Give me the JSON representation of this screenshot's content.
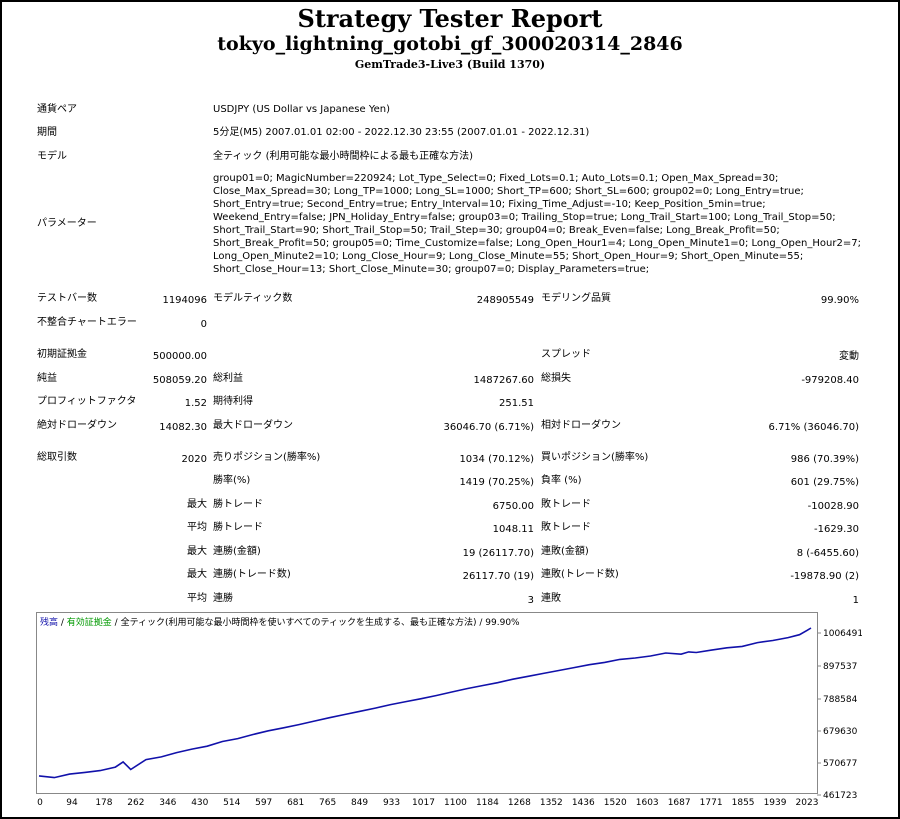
{
  "report": {
    "title": "Strategy Tester Report",
    "subtitle": "tokyo_lightning_gotobi_gf_300020314_2846",
    "server": "GemTrade3-Live3 (Build 1370)"
  },
  "info": {
    "symbol_label": "通貨ペア",
    "symbol_value": "USDJPY (US Dollar vs Japanese Yen)",
    "period_label": "期間",
    "period_value": "5分足(M5) 2007.01.01 02:00 - 2022.12.30 23:55 (2007.01.01 - 2022.12.31)",
    "model_label": "モデル",
    "model_value": "全ティック (利用可能な最小時間枠による最も正確な方法)",
    "params_label": "パラメーター",
    "params_value": "group01=0; MagicNumber=220924; Lot_Type_Select=0; Fixed_Lots=0.1; Auto_Lots=0.1; Open_Max_Spread=30; Close_Max_Spread=30; Long_TP=1000; Long_SL=1000; Short_TP=600; Short_SL=600; group02=0; Long_Entry=true; Short_Entry=true; Second_Entry=true; Entry_Interval=10; Fixing_Time_Adjust=-10; Keep_Position_5min=true; Weekend_Entry=false; JPN_Holiday_Entry=false; group03=0; Trailing_Stop=true; Long_Trail_Start=100; Long_Trail_Stop=50; Short_Trail_Start=90; Short_Trail_Stop=50; Trail_Step=30; group04=0; Break_Even=false; Long_Break_Profit=50; Short_Break_Profit=50; group05=0; Time_Customize=false; Long_Open_Hour1=4; Long_Open_Minute1=0; Long_Open_Hour2=7; Long_Open_Minute2=10; Long_Close_Hour=9; Long_Close_Minute=55; Short_Open_Hour=9; Short_Open_Minute=55; Short_Close_Hour=13; Short_Close_Minute=30; group07=0; Display_Parameters=true;"
  },
  "stats": {
    "bars_label": "テストバー数",
    "bars_value": "1194096",
    "ticks_label": "モデルティック数",
    "ticks_value": "248905549",
    "quality_label": "モデリング品質",
    "quality_value": "99.90%",
    "mismatch_label": "不整合チャートエラー",
    "mismatch_value": "0",
    "deposit_label": "初期証拠金",
    "deposit_value": "500000.00",
    "spread_label": "スプレッド",
    "spread_value": "変動",
    "net_label": "純益",
    "net_value": "508059.20",
    "gross_profit_label": "総利益",
    "gross_profit_value": "1487267.60",
    "gross_loss_label": "総損失",
    "gross_loss_value": "-979208.40",
    "pf_label": "プロフィットファクタ",
    "pf_value": "1.52",
    "expected_label": "期待利得",
    "expected_value": "251.51",
    "abs_dd_label": "絶対ドローダウン",
    "abs_dd_value": "14082.30",
    "max_dd_label": "最大ドローダウン",
    "max_dd_value": "36046.70 (6.71%)",
    "rel_dd_label": "相対ドローダウン",
    "rel_dd_value": "6.71% (36046.70)",
    "trades_label": "総取引数",
    "trades_value": "2020",
    "short_label": "売りポジション(勝率%)",
    "short_value": "1034 (70.12%)",
    "long_label": "買いポジション(勝率%)",
    "long_value": "986 (70.39%)",
    "win_pct_label": "勝率(%)",
    "win_pct_value": "1419 (70.25%)",
    "loss_pct_label": "負率 (%)",
    "loss_pct_value": "601 (29.75%)",
    "max_label": "最大",
    "avg_label": "平均",
    "largest_win_label": "勝トレード",
    "largest_win_value": "6750.00",
    "largest_loss_label": "敗トレード",
    "largest_loss_value": "-10028.90",
    "avg_win_label": "勝トレード",
    "avg_win_value": "1048.11",
    "avg_loss_label": "敗トレード",
    "avg_loss_value": "-1629.30",
    "max_cons_win_label": "連勝(金額)",
    "max_cons_win_value": "19 (26117.70)",
    "max_cons_loss_label": "連敗(金額)",
    "max_cons_loss_value": "8 (-6455.60)",
    "max_cons_profit_label": "連勝(トレード数)",
    "max_cons_profit_value": "26117.70 (19)",
    "max_cons_lossamt_label": "連敗(トレード数)",
    "max_cons_lossamt_value": "-19878.90 (2)",
    "avg_cons_win_label": "連勝",
    "avg_cons_win_value": "3",
    "avg_cons_loss_label": "連敗",
    "avg_cons_loss_value": "1"
  },
  "chart_data": {
    "type": "line",
    "legend_balance": "残高",
    "legend_sep1": " / ",
    "legend_equity": "有効証拠金",
    "legend_sep2": " / ",
    "legend_model": "全ティック(利用可能な最小時間枠を使いすべてのティックを生成する、最も正確な方法)",
    "legend_sep3": " / ",
    "legend_quality": "99.90%",
    "x_ticks": [
      "0",
      "94",
      "178",
      "262",
      "346",
      "430",
      "514",
      "597",
      "681",
      "765",
      "849",
      "933",
      "1017",
      "1100",
      "1184",
      "1268",
      "1352",
      "1436",
      "1520",
      "1603",
      "1687",
      "1771",
      "1855",
      "1939",
      "2023"
    ],
    "y_ticks": [
      "1006491",
      "897537",
      "788584",
      "679630",
      "570677",
      "461723"
    ],
    "xlim": [
      0,
      2020
    ],
    "ylim": [
      461723,
      1008059
    ],
    "x": [
      0,
      40,
      80,
      120,
      160,
      200,
      220,
      240,
      280,
      320,
      360,
      400,
      440,
      480,
      520,
      560,
      600,
      640,
      680,
      720,
      760,
      800,
      840,
      880,
      920,
      960,
      1000,
      1040,
      1080,
      1120,
      1160,
      1200,
      1240,
      1280,
      1320,
      1360,
      1400,
      1440,
      1480,
      1520,
      1560,
      1600,
      1640,
      1680,
      1700,
      1720,
      1760,
      1800,
      1840,
      1880,
      1920,
      1960,
      1990,
      2010,
      2020
    ],
    "y": [
      500000,
      494000,
      506000,
      512000,
      518000,
      530000,
      548000,
      522000,
      556000,
      565000,
      580000,
      592000,
      602000,
      618000,
      628000,
      642000,
      655000,
      665000,
      676000,
      688000,
      700000,
      711000,
      722000,
      733000,
      745000,
      755000,
      765000,
      776000,
      788000,
      800000,
      810000,
      820000,
      832000,
      842000,
      852000,
      862000,
      872000,
      882000,
      890000,
      900000,
      905000,
      912000,
      922000,
      918000,
      926000,
      924000,
      932000,
      940000,
      945000,
      958000,
      965000,
      975000,
      985000,
      1000000,
      1008059
    ]
  },
  "colors": {
    "balance": "#1111aa",
    "equity": "#009900"
  }
}
